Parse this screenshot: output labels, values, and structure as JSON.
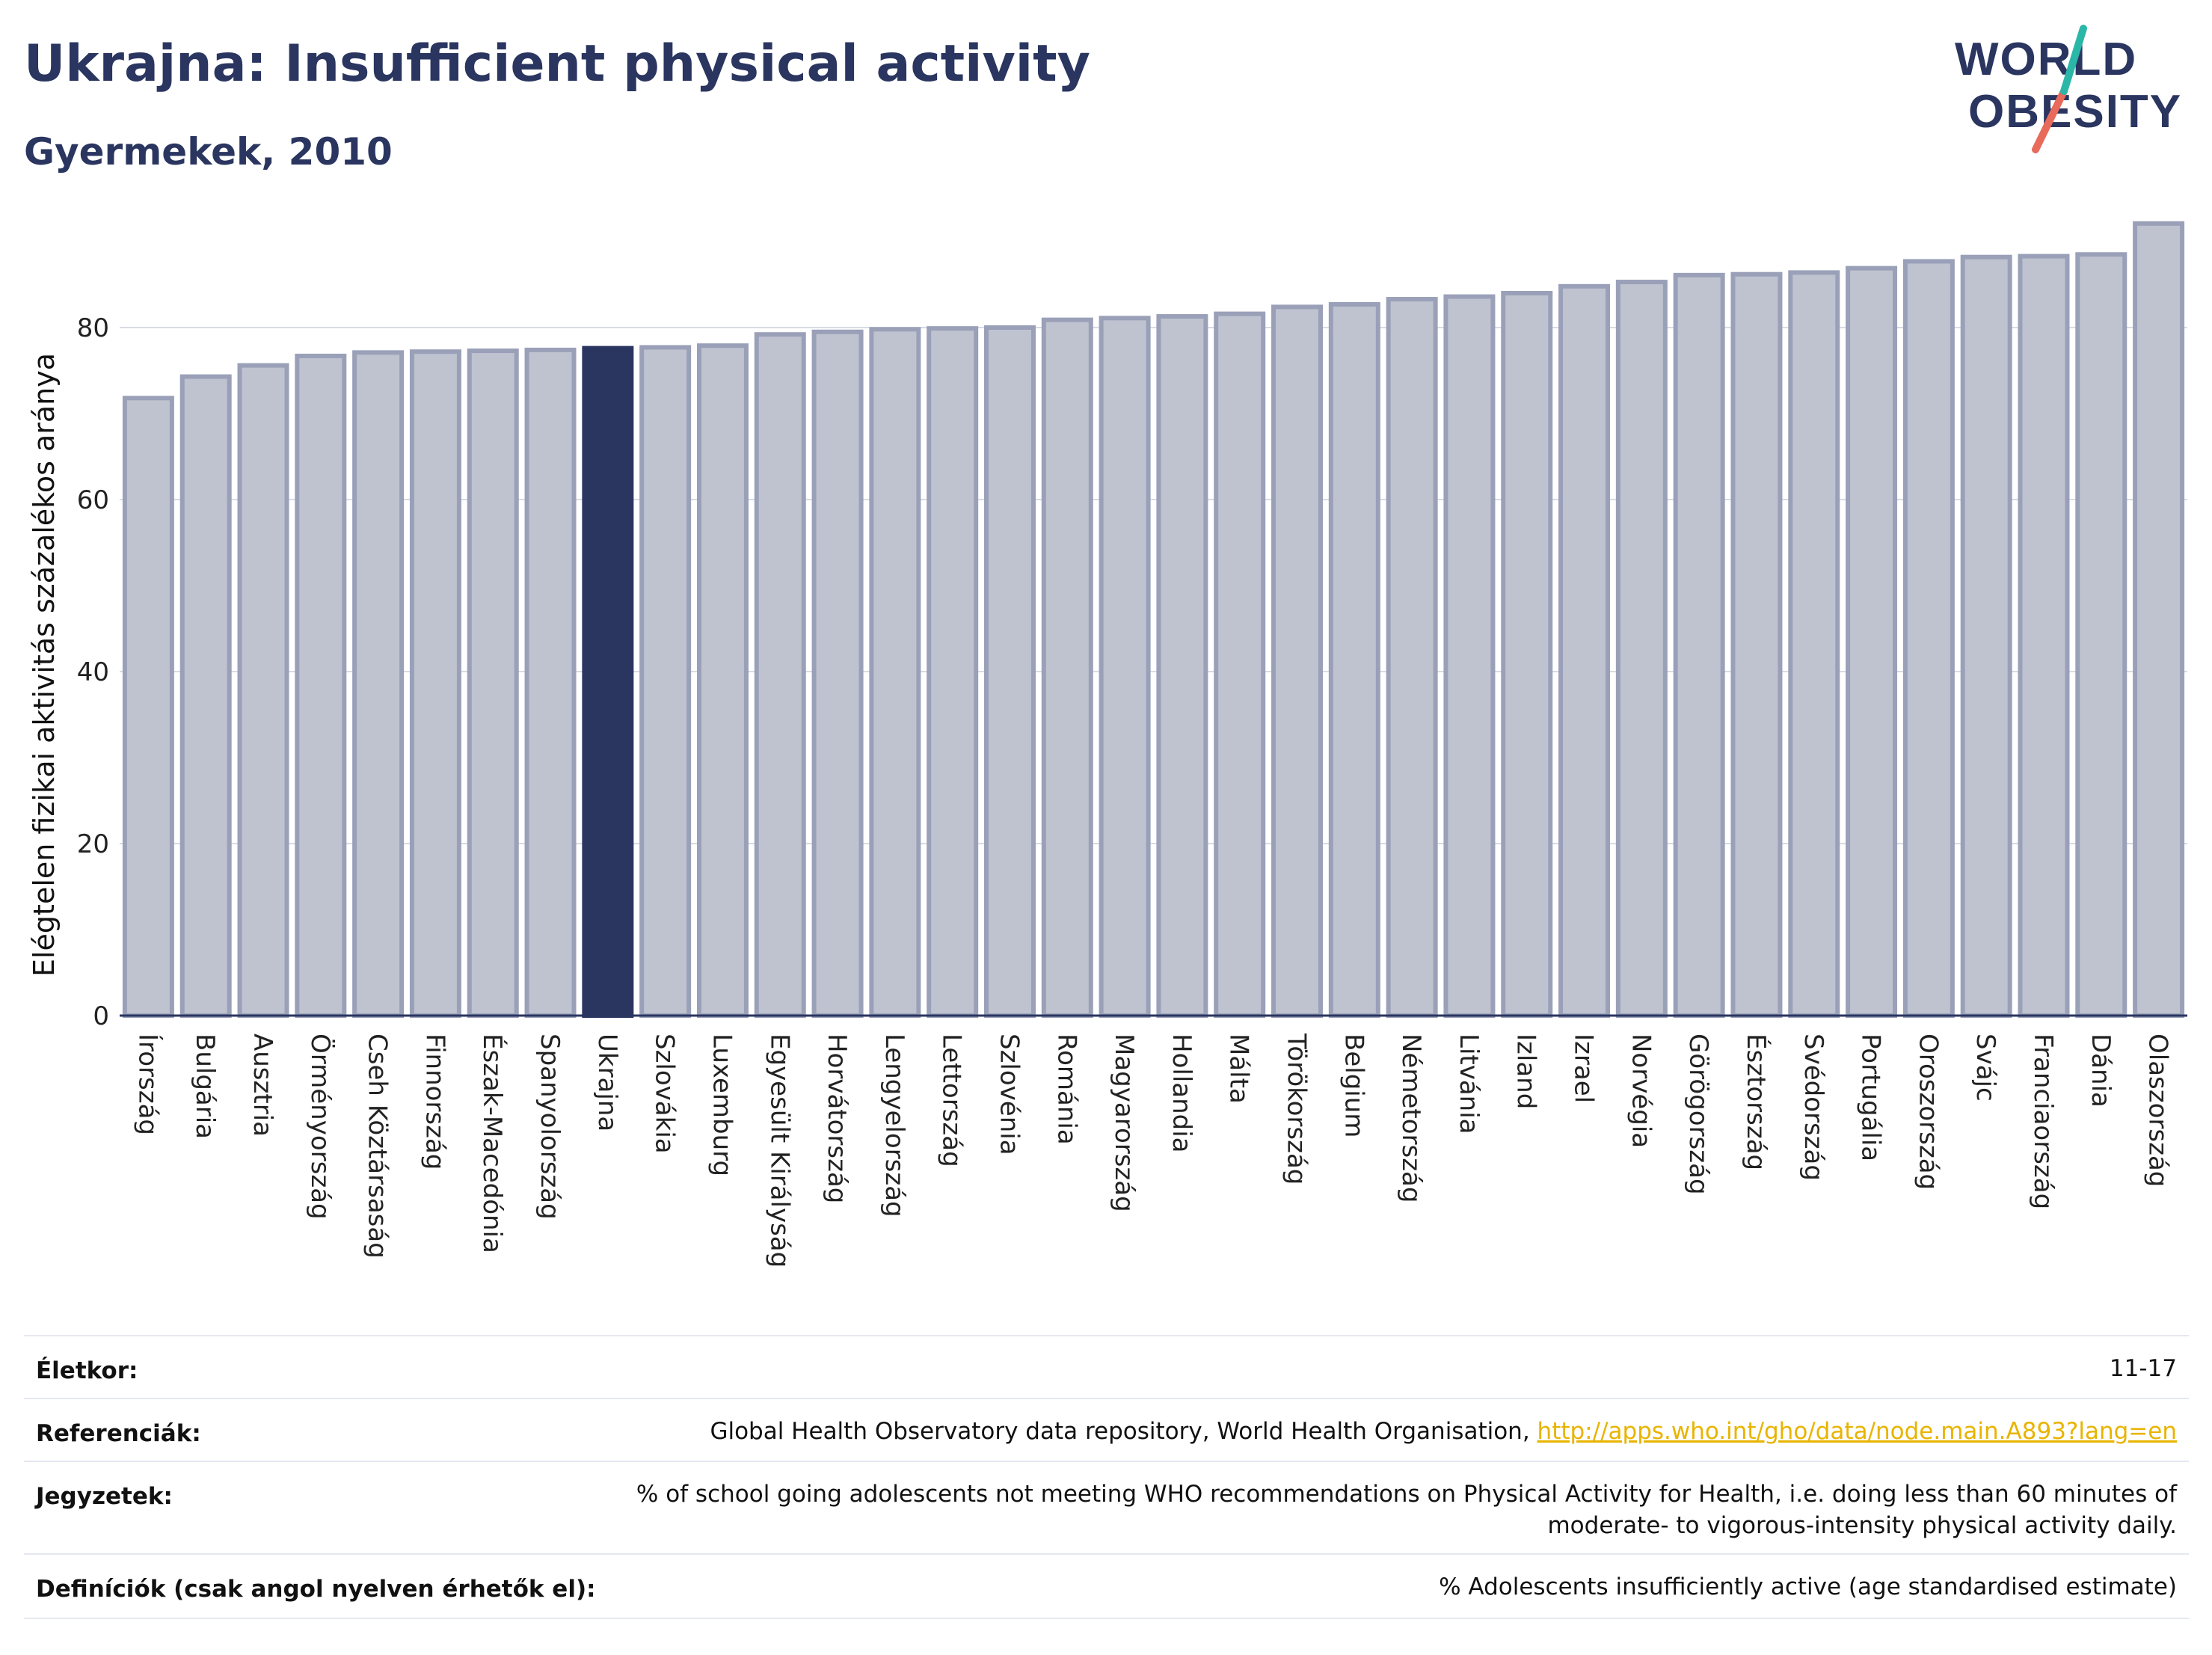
{
  "header": {
    "title": "Ukrajna: Insufficient physical activity",
    "subtitle": "Gyermekek, 2010"
  },
  "logo": {
    "line1": "WORLD",
    "line2": "OBESITY"
  },
  "chart_data": {
    "type": "bar",
    "ylabel": "Elégtelen fizikai aktivitás százalékos aránya",
    "ylim": [
      0,
      92
    ],
    "yticks": [
      0,
      20,
      40,
      60,
      80
    ],
    "grid": true,
    "highlight": "Ukrajna",
    "colors": {
      "bar": "#bfc3d0",
      "bar_border": "#9aa0b8",
      "highlight": "#2a3560"
    },
    "categories": [
      "Írország",
      "Bulgária",
      "Ausztria",
      "Örményország",
      "Cseh Köztársaság",
      "Finnország",
      "Észak-Macedónia",
      "Spanyolország",
      "Ukrajna",
      "Szlovákia",
      "Luxemburg",
      "Egyesült Királyság",
      "Horvátország",
      "Lengyelország",
      "Lettország",
      "Szlovénia",
      "Románia",
      "Magyarország",
      "Hollandia",
      "Málta",
      "Törökország",
      "Belgium",
      "Németország",
      "Litvánia",
      "Izland",
      "Izrael",
      "Norvégia",
      "Görögország",
      "Észtország",
      "Svédország",
      "Portugália",
      "Oroszország",
      "Svájc",
      "Franciaország",
      "Dánia",
      "Olaszország"
    ],
    "values": [
      71.8,
      74.3,
      75.6,
      76.7,
      77.1,
      77.2,
      77.3,
      77.4,
      77.6,
      77.7,
      77.9,
      79.2,
      79.5,
      79.8,
      79.9,
      80.0,
      80.9,
      81.1,
      81.3,
      81.6,
      82.4,
      82.7,
      83.3,
      83.6,
      84.0,
      84.8,
      85.3,
      86.1,
      86.2,
      86.4,
      86.9,
      87.7,
      88.2,
      88.3,
      88.5,
      92.1
    ]
  },
  "info": {
    "rows": [
      {
        "label": "Életkor:",
        "value": "11-17"
      },
      {
        "label": "Referenciák:",
        "value": "Global Health Observatory data repository, World Health Organisation, ",
        "link": "http://apps.who.int/gho/data/node.main.A893?lang=en"
      },
      {
        "label": "Jegyzetek:",
        "value_line1": "% of school going adolescents not meeting WHO recommendations on Physical Activity for Health, i.e. doing less than 60 minutes of",
        "value_line2": "moderate- to vigorous-intensity physical activity daily."
      },
      {
        "label": "Definíciók (csak angol nyelven érhetők el):",
        "value": "% Adolescents insufficiently active (age standardised estimate)"
      }
    ]
  }
}
